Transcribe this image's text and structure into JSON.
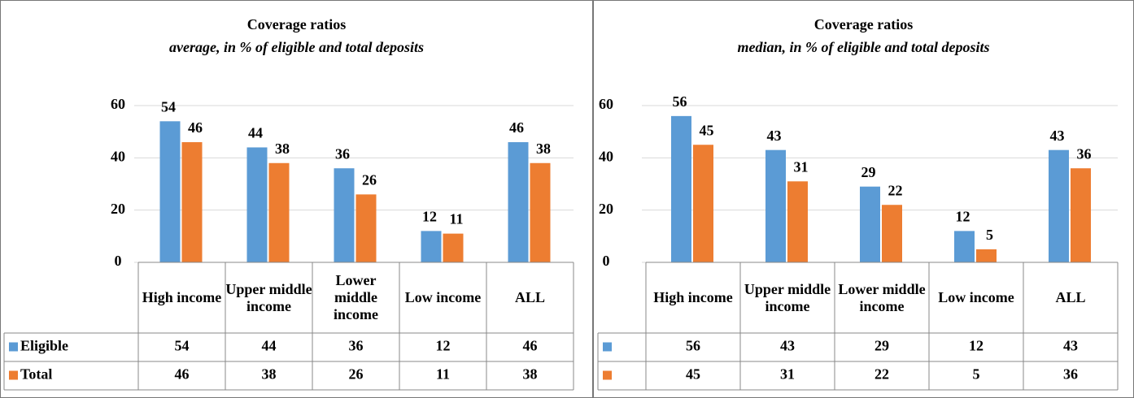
{
  "chart_data": [
    {
      "type": "bar",
      "title": "Coverage ratios",
      "subtitle": "average, in % of eligible and total deposits",
      "categories": [
        "High income",
        "Upper middle income",
        "Lower middle income",
        "Low income",
        "ALL"
      ],
      "series": [
        {
          "name": "Eligible",
          "color": "#5b9bd5",
          "values": [
            54,
            44,
            36,
            12,
            46
          ]
        },
        {
          "name": "Total",
          "color": "#ed7d31",
          "values": [
            46,
            38,
            26,
            11,
            38
          ]
        }
      ],
      "ylim": [
        0,
        60
      ],
      "yticks": [
        0,
        20,
        40,
        60
      ],
      "grid": true
    },
    {
      "type": "bar",
      "title": "Coverage ratios",
      "subtitle": "median, in % of eligible and total deposits",
      "categories": [
        "High income",
        "Upper middle income",
        "Lower middle income",
        "Low income",
        "ALL"
      ],
      "series": [
        {
          "color": "#5b9bd5",
          "values": [
            56,
            43,
            29,
            12,
            43
          ]
        },
        {
          "color": "#ed7d31",
          "values": [
            45,
            31,
            22,
            5,
            36
          ]
        }
      ],
      "ylim": [
        0,
        60
      ],
      "yticks": [
        0,
        20,
        40,
        60
      ],
      "grid": true
    }
  ]
}
